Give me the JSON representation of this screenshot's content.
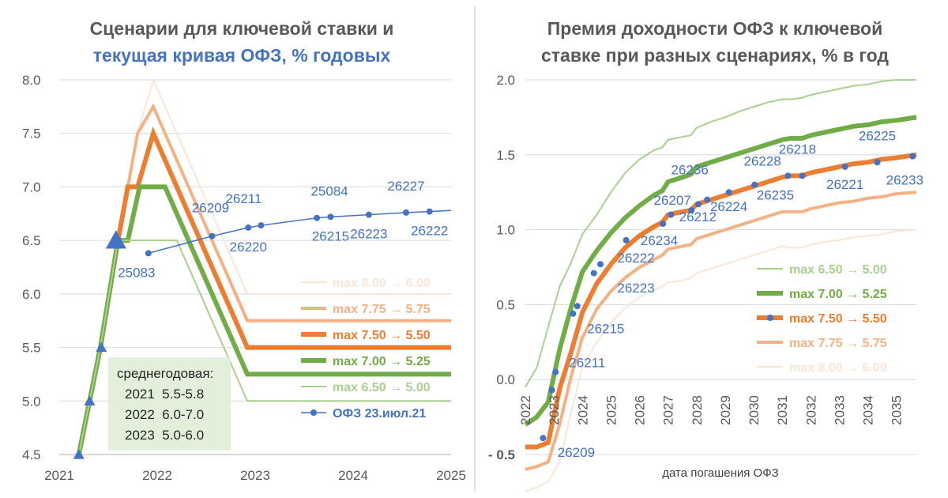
{
  "chart_data": [
    {
      "type": "line",
      "title_line1": "Сценарии для ключевой ставки и",
      "title_line2": "текущая кривая ОФЗ, % годовых",
      "colors": {
        "title1": "#595959",
        "title2": "#4472C4"
      },
      "ylim": [
        4.5,
        8.0
      ],
      "yticks": [
        "4.5",
        "5.0",
        "5.5",
        "6.0",
        "6.5",
        "7.0",
        "7.5",
        "8.0"
      ],
      "xlim": [
        2021.0,
        2025.0
      ],
      "xticks": [
        "2021",
        "2022",
        "2023",
        "2024",
        "2025"
      ],
      "series": [
        {
          "name": "max 8.00 → 6.00",
          "color": "#FBE5D6",
          "width": 2,
          "x": [
            2021.2,
            2021.42,
            2021.6,
            2021.8,
            2021.96,
            2022.92,
            2025.0
          ],
          "y": [
            4.5,
            5.5,
            6.5,
            7.5,
            8.0,
            6.0,
            6.0
          ]
        },
        {
          "name": "max 7.75 → 5.75",
          "color": "#F4B183",
          "width": 4,
          "x": [
            2021.2,
            2021.42,
            2021.6,
            2021.8,
            2021.96,
            2022.92,
            2025.0
          ],
          "y": [
            4.5,
            5.5,
            6.5,
            7.5,
            7.75,
            5.75,
            5.75
          ]
        },
        {
          "name": "max 7.50 → 5.50",
          "color": "#ED7D31",
          "width": 6,
          "x": [
            2021.2,
            2021.42,
            2021.6,
            2021.7,
            2021.8,
            2021.96,
            2022.92,
            2025.0
          ],
          "y": [
            4.5,
            5.5,
            6.5,
            7.0,
            7.0,
            7.5,
            5.5,
            5.5
          ]
        },
        {
          "name": "max 7.00 → 5.25",
          "color": "#70AD47",
          "width": 6,
          "x": [
            2021.2,
            2021.42,
            2021.6,
            2021.7,
            2021.82,
            2022.08,
            2022.92,
            2025.0
          ],
          "y": [
            4.5,
            5.5,
            6.5,
            6.5,
            7.0,
            7.0,
            5.25,
            5.25
          ]
        },
        {
          "name": "max 6.50 → 5.00",
          "color": "#A9D18E",
          "width": 2,
          "x": [
            2021.2,
            2021.42,
            2021.6,
            2021.96,
            2022.2,
            2022.92,
            2025.0
          ],
          "y": [
            4.5,
            5.5,
            6.5,
            6.5,
            6.5,
            5.0,
            5.0
          ]
        },
        {
          "name": "ОФЗ 23.июл.21",
          "color": "#4472C4",
          "width": 1.5,
          "markers": true,
          "x": [
            2021.91,
            2022.56,
            2022.93,
            2023.06,
            2023.63,
            2023.77,
            2024.16,
            2024.54,
            2024.78
          ],
          "y": [
            6.38,
            6.54,
            6.62,
            6.64,
            6.71,
            6.72,
            6.74,
            6.76,
            6.77
          ],
          "bond_labels": [
            "25083",
            "26209",
            "26220",
            "26211",
            "25084",
            "26215",
            "26223",
            "26227",
            "26222"
          ],
          "line_extend_to": 2025.0,
          "line_extend_y": 6.78
        }
      ],
      "bond_label_offsets": [
        [
          -15,
          30
        ],
        [
          -2,
          -30
        ],
        [
          0,
          30
        ],
        [
          -22,
          -28
        ],
        [
          16,
          -28
        ],
        [
          0,
          30
        ],
        [
          0,
          30
        ],
        [
          0,
          -28
        ],
        [
          0,
          30
        ]
      ],
      "key_rate_markers": {
        "color": "#4472C4",
        "x": [
          2021.2,
          2021.31,
          2021.43,
          2021.58
        ],
        "y": [
          4.5,
          5.0,
          5.5,
          6.5
        ]
      },
      "annotation": {
        "lines": [
          "среднегодовая:",
          "2021  5.5-5.8",
          "2022  6.0-7.0",
          "2023  5.0-6.0"
        ],
        "background": "#E2EFDA"
      },
      "legend_order": [
        0,
        1,
        2,
        3,
        4,
        5
      ],
      "legend_text_colors": [
        "#FBE5D6",
        "#F4B183",
        "#ED7D31",
        "#70AD47",
        "#A9D18E",
        "#4472C4"
      ]
    },
    {
      "type": "line",
      "title_line1": "Премия доходности ОФЗ к ключевой",
      "title_line2": "ставке при разных сценариях, % в год",
      "colors": {
        "title1": "#595959",
        "title2": "#595959",
        "negative_tick": "#C00000"
      },
      "ylim": [
        -0.5,
        2.0
      ],
      "yticks": [
        "- 0.5",
        "0.0",
        "0.5",
        "1.0",
        "1.5",
        "2.0"
      ],
      "xlim": [
        2022.0,
        2035.7
      ],
      "xticks": [
        "2022",
        "2023",
        "2024",
        "2025",
        "2026",
        "2027",
        "2028",
        "2029",
        "2030",
        "2031",
        "2032",
        "2033",
        "2034",
        "2035"
      ],
      "xlabel": "дата погашения ОФЗ",
      "series": [
        {
          "name": "max 6.50 → 5.00",
          "color": "#A9D18E",
          "width": 2,
          "x": [
            2022.0,
            2022.4,
            2022.8,
            2023.2,
            2023.6,
            2024.0,
            2024.5,
            2025.0,
            2025.5,
            2026.0,
            2026.5,
            2026.8,
            2027.0,
            2027.5,
            2027.8,
            2028.0,
            2028.5,
            2029.0,
            2029.5,
            2030.0,
            2030.5,
            2031.0,
            2031.3,
            2031.7,
            2032.0,
            2032.5,
            2033.0,
            2033.5,
            2034.0,
            2034.5,
            2035.0,
            2035.7
          ],
          "y": [
            -0.05,
            0.08,
            0.35,
            0.62,
            0.78,
            0.97,
            1.1,
            1.25,
            1.38,
            1.47,
            1.53,
            1.55,
            1.6,
            1.62,
            1.63,
            1.68,
            1.72,
            1.75,
            1.79,
            1.82,
            1.85,
            1.87,
            1.87,
            1.88,
            1.9,
            1.92,
            1.94,
            1.96,
            1.97,
            1.99,
            2.0,
            2.0
          ]
        },
        {
          "name": "max 7.00 → 5.25",
          "color": "#70AD47",
          "width": 6,
          "x": [
            2022.0,
            2022.4,
            2022.8,
            2023.2,
            2023.6,
            2024.0,
            2024.5,
            2025.0,
            2025.5,
            2026.0,
            2026.5,
            2026.8,
            2027.0,
            2027.5,
            2027.8,
            2028.0,
            2028.5,
            2029.0,
            2029.5,
            2030.0,
            2030.5,
            2031.0,
            2031.3,
            2031.7,
            2032.0,
            2032.5,
            2033.0,
            2033.5,
            2034.0,
            2034.5,
            2035.0,
            2035.7
          ],
          "y": [
            -0.3,
            -0.25,
            -0.15,
            0.2,
            0.48,
            0.72,
            0.86,
            0.98,
            1.08,
            1.16,
            1.23,
            1.26,
            1.32,
            1.35,
            1.37,
            1.42,
            1.45,
            1.48,
            1.51,
            1.54,
            1.57,
            1.6,
            1.61,
            1.61,
            1.63,
            1.65,
            1.67,
            1.69,
            1.7,
            1.72,
            1.73,
            1.75
          ]
        },
        {
          "name": "max 7.50 → 5.50",
          "color": "#ED7D31",
          "width": 6,
          "markers": true,
          "x": [
            2022.0,
            2022.4,
            2022.8,
            2023.2,
            2023.6,
            2024.0,
            2024.5,
            2025.0,
            2025.5,
            2026.0,
            2026.5,
            2026.8,
            2027.0,
            2027.5,
            2027.8,
            2028.0,
            2028.5,
            2029.0,
            2029.5,
            2030.0,
            2030.5,
            2031.0,
            2031.3,
            2031.7,
            2032.0,
            2032.5,
            2033.0,
            2033.5,
            2034.0,
            2034.5,
            2035.0,
            2035.7
          ],
          "y": [
            -0.45,
            -0.45,
            -0.42,
            -0.06,
            0.18,
            0.45,
            0.64,
            0.77,
            0.88,
            0.96,
            1.02,
            1.05,
            1.1,
            1.12,
            1.13,
            1.17,
            1.2,
            1.23,
            1.26,
            1.29,
            1.32,
            1.35,
            1.36,
            1.36,
            1.38,
            1.4,
            1.42,
            1.44,
            1.45,
            1.47,
            1.48,
            1.5
          ]
        },
        {
          "name": "max 7.75 → 5.75",
          "color": "#F4B183",
          "width": 4,
          "x": [
            2022.0,
            2022.4,
            2022.8,
            2023.2,
            2023.6,
            2024.0,
            2024.5,
            2025.0,
            2025.5,
            2026.0,
            2026.5,
            2026.8,
            2027.0,
            2027.5,
            2027.8,
            2028.0,
            2028.5,
            2029.0,
            2029.5,
            2030.0,
            2030.5,
            2031.0,
            2031.3,
            2031.7,
            2032.0,
            2032.5,
            2033.0,
            2033.5,
            2034.0,
            2034.5,
            2035.0,
            2035.7
          ],
          "y": [
            -0.6,
            -0.58,
            -0.55,
            -0.3,
            0.02,
            0.28,
            0.47,
            0.59,
            0.68,
            0.75,
            0.8,
            0.83,
            0.87,
            0.89,
            0.9,
            0.94,
            0.97,
            1.0,
            1.03,
            1.06,
            1.09,
            1.12,
            1.12,
            1.12,
            1.14,
            1.16,
            1.18,
            1.19,
            1.21,
            1.22,
            1.24,
            1.25
          ]
        },
        {
          "name": "max 8.00 → 6.00",
          "color": "#FBE5D6",
          "width": 2,
          "x": [
            2022.0,
            2022.4,
            2022.8,
            2023.2,
            2023.6,
            2024.0,
            2024.5,
            2025.0,
            2025.5,
            2026.0,
            2026.5,
            2026.8,
            2027.0,
            2027.5,
            2027.8,
            2028.0,
            2028.5,
            2029.0,
            2029.5,
            2030.0,
            2030.5,
            2031.0,
            2031.3,
            2031.7,
            2032.0,
            2032.5,
            2033.0,
            2033.5,
            2034.0,
            2034.5,
            2035.0,
            2035.7
          ],
          "y": [
            -0.75,
            -0.72,
            -0.68,
            -0.55,
            -0.22,
            0.08,
            0.25,
            0.38,
            0.48,
            0.55,
            0.6,
            0.62,
            0.65,
            0.66,
            0.68,
            0.71,
            0.74,
            0.77,
            0.8,
            0.83,
            0.86,
            0.89,
            0.88,
            0.88,
            0.9,
            0.92,
            0.93,
            0.95,
            0.96,
            0.97,
            0.99,
            1.0
          ]
        }
      ],
      "bond_markers": {
        "color": "#4472C4",
        "x": [
          2022.62,
          2022.93,
          2023.06,
          2023.67,
          2023.82,
          2024.4,
          2024.63,
          2025.53,
          2026.82,
          2027.1,
          2027.82,
          2028.06,
          2028.37,
          2029.13,
          2030.03,
          2031.2,
          2031.7,
          2033.2,
          2034.33,
          2035.57
        ],
        "y": [
          -0.39,
          -0.07,
          0.05,
          0.44,
          0.49,
          0.71,
          0.77,
          0.93,
          1.04,
          1.1,
          1.13,
          1.17,
          1.2,
          1.25,
          1.3,
          1.36,
          1.36,
          1.42,
          1.45,
          1.49
        ]
      },
      "bond_labels": [
        {
          "text": "26209",
          "x": 2022.62,
          "y": -0.39,
          "dx": 42,
          "dy": 24
        },
        {
          "text": "26211",
          "x": 2023.06,
          "y": 0.05,
          "dx": 40,
          "dy": -6
        },
        {
          "text": "26215",
          "x": 2023.82,
          "y": 0.49,
          "dx": 36,
          "dy": 34
        },
        {
          "text": "26223",
          "x": 2024.63,
          "y": 0.77,
          "dx": 45,
          "dy": 36
        },
        {
          "text": "26222",
          "x": 2024.63,
          "y": 0.77,
          "dx": 45,
          "dy": -2
        },
        {
          "text": "26234",
          "x": 2025.53,
          "y": 0.93,
          "dx": 42,
          "dy": 6
        },
        {
          "text": "26207",
          "x": 2026.82,
          "y": 1.04,
          "dx": 12,
          "dy": -24
        },
        {
          "text": "26212",
          "x": 2027.82,
          "y": 1.13,
          "dx": 8,
          "dy": 14
        },
        {
          "text": "26236",
          "x": 2028.37,
          "y": 1.2,
          "dx": -22,
          "dy": -32
        },
        {
          "text": "26224",
          "x": 2029.13,
          "y": 1.25,
          "dx": 0,
          "dy": 24
        },
        {
          "text": "26228",
          "x": 2030.03,
          "y": 1.3,
          "dx": 10,
          "dy": -24
        },
        {
          "text": "26235",
          "x": 2031.2,
          "y": 1.36,
          "dx": -16,
          "dy": 30
        },
        {
          "text": "26218",
          "x": 2031.2,
          "y": 1.36,
          "dx": 12,
          "dy": -28
        },
        {
          "text": "26221",
          "x": 2033.2,
          "y": 1.42,
          "dx": 0,
          "dy": 28
        },
        {
          "text": "26225",
          "x": 2034.33,
          "y": 1.45,
          "dx": 0,
          "dy": -28
        },
        {
          "text": "26233",
          "x": 2035.57,
          "y": 1.49,
          "dx": -10,
          "dy": 36
        }
      ],
      "legend_order": [
        0,
        1,
        2,
        3,
        4
      ],
      "legend_text_colors": [
        "#A9D18E",
        "#70AD47",
        "#ED7D31",
        "#F4B183",
        "#FBE5D6"
      ]
    }
  ]
}
